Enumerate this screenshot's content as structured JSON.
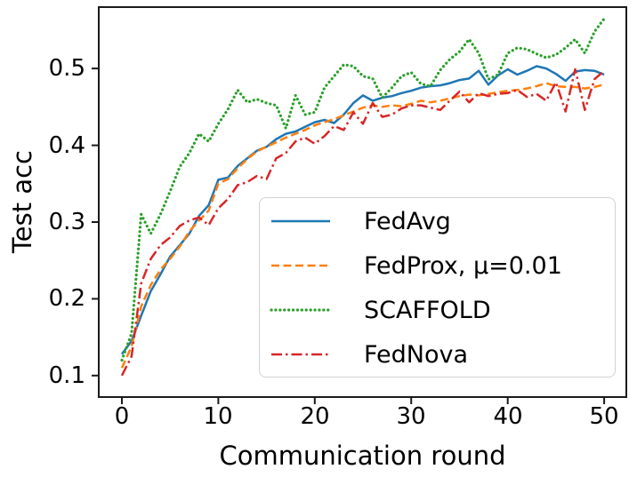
{
  "chart_data": {
    "type": "line",
    "title": "",
    "xlabel": "Communication round",
    "ylabel": "Test acc",
    "x": [
      0,
      1,
      2,
      3,
      4,
      5,
      6,
      7,
      8,
      9,
      10,
      11,
      12,
      13,
      14,
      15,
      16,
      17,
      18,
      19,
      20,
      21,
      22,
      23,
      24,
      25,
      26,
      27,
      28,
      29,
      30,
      31,
      32,
      33,
      34,
      35,
      36,
      37,
      38,
      39,
      40,
      41,
      42,
      43,
      44,
      45,
      46,
      47,
      48,
      49,
      50
    ],
    "series": [
      {
        "name": "FedAvg",
        "color": "#1f77b4",
        "linestyle": "solid",
        "values": [
          0.128,
          0.145,
          0.178,
          0.21,
          0.232,
          0.255,
          0.27,
          0.285,
          0.308,
          0.322,
          0.355,
          0.358,
          0.373,
          0.383,
          0.393,
          0.398,
          0.408,
          0.415,
          0.418,
          0.424,
          0.43,
          0.433,
          0.429,
          0.44,
          0.455,
          0.465,
          0.458,
          0.462,
          0.464,
          0.468,
          0.471,
          0.475,
          0.477,
          0.478,
          0.481,
          0.485,
          0.487,
          0.497,
          0.479,
          0.491,
          0.499,
          0.492,
          0.497,
          0.503,
          0.5,
          0.493,
          0.484,
          0.496,
          0.498,
          0.497,
          0.492
        ]
      },
      {
        "name": "FedProx, μ=0.01",
        "color": "#ff7f0e",
        "linestyle": "dashed",
        "values": [
          0.11,
          0.138,
          0.19,
          0.218,
          0.238,
          0.252,
          0.268,
          0.288,
          0.302,
          0.315,
          0.35,
          0.356,
          0.37,
          0.382,
          0.392,
          0.398,
          0.404,
          0.41,
          0.415,
          0.42,
          0.426,
          0.43,
          0.434,
          0.439,
          0.444,
          0.449,
          0.452,
          0.45,
          0.452,
          0.451,
          0.454,
          0.458,
          0.456,
          0.458,
          0.461,
          0.464,
          0.466,
          0.465,
          0.467,
          0.469,
          0.471,
          0.472,
          0.474,
          0.477,
          0.481,
          0.477,
          0.476,
          0.476,
          0.474,
          0.476,
          0.479
        ]
      },
      {
        "name": "SCAFFOLD",
        "color": "#2ca02c",
        "linestyle": "dotted",
        "values": [
          0.12,
          0.155,
          0.31,
          0.285,
          0.31,
          0.34,
          0.372,
          0.39,
          0.415,
          0.405,
          0.428,
          0.447,
          0.472,
          0.456,
          0.46,
          0.455,
          0.452,
          0.422,
          0.465,
          0.44,
          0.443,
          0.475,
          0.49,
          0.505,
          0.503,
          0.49,
          0.487,
          0.462,
          0.475,
          0.49,
          0.495,
          0.48,
          0.477,
          0.498,
          0.512,
          0.522,
          0.538,
          0.52,
          0.486,
          0.492,
          0.52,
          0.527,
          0.525,
          0.519,
          0.514,
          0.518,
          0.527,
          0.538,
          0.52,
          0.548,
          0.565
        ]
      },
      {
        "name": "FedNova",
        "color": "#d62728",
        "linestyle": "dashdot",
        "values": [
          0.1,
          0.125,
          0.22,
          0.252,
          0.27,
          0.28,
          0.295,
          0.302,
          0.306,
          0.296,
          0.318,
          0.33,
          0.348,
          0.352,
          0.36,
          0.356,
          0.383,
          0.39,
          0.405,
          0.41,
          0.402,
          0.412,
          0.425,
          0.42,
          0.443,
          0.428,
          0.455,
          0.437,
          0.44,
          0.448,
          0.452,
          0.452,
          0.449,
          0.446,
          0.458,
          0.47,
          0.456,
          0.468,
          0.464,
          0.467,
          0.468,
          0.472,
          0.463,
          0.467,
          0.458,
          0.482,
          0.444,
          0.499,
          0.446,
          0.486,
          0.497
        ]
      }
    ],
    "xticks": [
      0,
      10,
      20,
      30,
      40,
      50
    ],
    "yticks": [
      0.1,
      0.2,
      0.3,
      0.4,
      0.5
    ],
    "xtick_labels": [
      "0",
      "10",
      "20",
      "30",
      "40",
      "50"
    ],
    "ytick_labels": [
      "0.1",
      "0.2",
      "0.3",
      "0.4",
      "0.5"
    ],
    "xlim": [
      -2.4,
      52.3
    ],
    "ylim": [
      0.072,
      0.58
    ],
    "grid": false,
    "legend_position": "lower right inside",
    "axis_color": "#1a1a1a"
  }
}
